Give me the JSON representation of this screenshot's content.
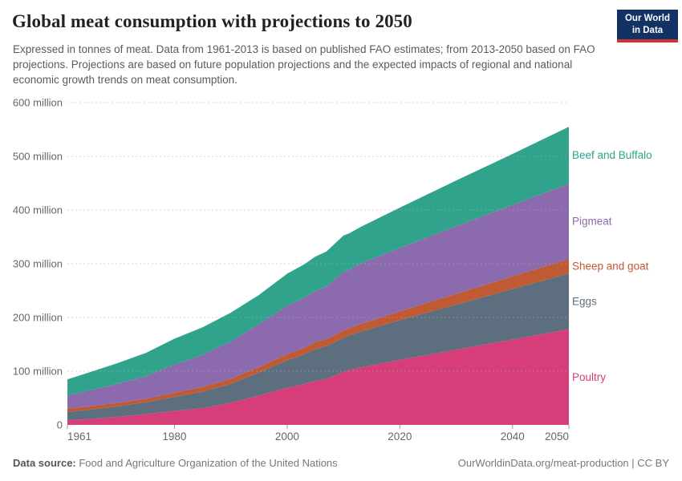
{
  "header": {
    "title": "Global meat consumption with projections to 2050",
    "subtitle": "Expressed in tonnes of meat. Data from 1961-2013 is based on published FAO estimates; from 2013-2050 based on FAO projections. Projections are based on future population projections and the expected impacts of regional and national economic growth trends on meat consumption.",
    "logo": {
      "line1": "Our World",
      "line2": "in Data",
      "bg_color": "#123165",
      "accent_color": "#d1342f"
    }
  },
  "chart_data": {
    "type": "area",
    "stacked": true,
    "title": "Global meat consumption with projections to 2050",
    "xlabel": "",
    "ylabel": "tonnes of meat",
    "xlim": [
      1961,
      2050
    ],
    "ylim": [
      0,
      600000000
    ],
    "grid": "horizontal-dashed",
    "legend_position": "right-of-plot-band-aligned",
    "projection_start_year": 2013,
    "unit": "million tonnes",
    "x": [
      1961,
      1965,
      1970,
      1975,
      1980,
      1985,
      1990,
      1995,
      2000,
      2003,
      2005,
      2007,
      2010,
      2011,
      2013,
      2020,
      2030,
      2040,
      2050
    ],
    "series": [
      {
        "name": "Beef and Buffalo",
        "color": "#31a38d",
        "values": [
          30.0,
          33.7,
          38.4,
          43.7,
          48.0,
          51.4,
          53.4,
          54.2,
          59.8,
          62.0,
          64.0,
          65.4,
          67.8,
          67.5,
          68.0,
          75,
          85,
          95,
          106
        ]
      },
      {
        "name": "Pigmeat",
        "color": "#8b6bae",
        "values": [
          24.7,
          29.7,
          35.8,
          41.7,
          52.7,
          59.9,
          69.8,
          80.1,
          90.0,
          93.5,
          95.2,
          98.0,
          109.2,
          109.0,
          113.0,
          118,
          126,
          133,
          140
        ]
      },
      {
        "name": "Sheep and goat",
        "color": "#c05a32",
        "values": [
          6.0,
          6.3,
          6.6,
          6.6,
          7.6,
          8.4,
          9.6,
          10.1,
          11.4,
          12.2,
          12.8,
          13.1,
          13.3,
          13.5,
          13.9,
          16.5,
          20,
          23.5,
          27
        ]
      },
      {
        "name": "Eggs",
        "color": "#5d6f7f",
        "values": [
          15.1,
          17.2,
          19.5,
          22.2,
          26.2,
          30.8,
          35.2,
          42.8,
          51.1,
          55.0,
          59.2,
          61.0,
          63.5,
          64.5,
          66.5,
          74,
          84,
          94,
          104
        ]
      },
      {
        "name": "Poultry",
        "color": "#d53e79",
        "values": [
          9.0,
          11.1,
          15.1,
          20.2,
          25.9,
          31.2,
          41.0,
          54.7,
          69.2,
          76.0,
          82.1,
          85.5,
          98.9,
          102.0,
          107.0,
          121,
          140,
          159,
          178
        ]
      }
    ],
    "y_ticks": [
      {
        "value": 600,
        "label": "600 million"
      },
      {
        "value": 500,
        "label": "500 million"
      },
      {
        "value": 400,
        "label": "400 million"
      },
      {
        "value": 300,
        "label": "300 million"
      },
      {
        "value": 200,
        "label": "200 million"
      },
      {
        "value": 100,
        "label": "100 million"
      },
      {
        "value": 0,
        "label": "0"
      }
    ],
    "x_ticks": [
      {
        "value": 1961,
        "label": "1961",
        "align": "start"
      },
      {
        "value": 1980,
        "label": "1980",
        "align": "middle"
      },
      {
        "value": 2000,
        "label": "2000",
        "align": "middle"
      },
      {
        "value": 2020,
        "label": "2020",
        "align": "middle"
      },
      {
        "value": 2040,
        "label": "2040",
        "align": "middle"
      },
      {
        "value": 2050,
        "label": "2050",
        "align": "end"
      }
    ]
  },
  "footer": {
    "source_label": "Data source:",
    "source_text": " Food and Agriculture Organization of the United Nations",
    "right_text": "OurWorldinData.org/meat-production | CC BY"
  }
}
